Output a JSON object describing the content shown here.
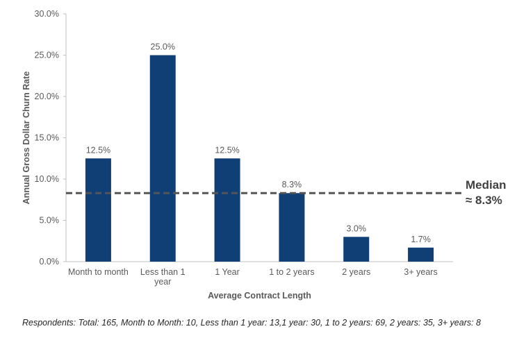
{
  "chart_data": {
    "type": "bar",
    "categories": [
      "Month to month",
      "Less than 1 year",
      "1 Year",
      "1 to 2 years",
      "2 years",
      "3+ years"
    ],
    "category_labels": [
      [
        "Month to month"
      ],
      [
        "Less than 1",
        "year"
      ],
      [
        "1 Year"
      ],
      [
        "1 to 2 years"
      ],
      [
        "2 years"
      ],
      [
        "3+ years"
      ]
    ],
    "values": [
      12.5,
      25.0,
      12.5,
      8.3,
      3.0,
      1.7
    ],
    "data_labels": [
      "12.5%",
      "25.0%",
      "12.5%",
      "8.3%",
      "3.0%",
      "1.7%"
    ],
    "xlabel": "Average Contract Length",
    "ylabel": "Annual Gross Dollar Churn Rate",
    "ylim": [
      0,
      30
    ],
    "yticks": [
      "0.0%",
      "5.0%",
      "10.0%",
      "15.0%",
      "20.0%",
      "25.0%",
      "30.0%"
    ],
    "grid": false,
    "bar_color": "#0f3f75",
    "reference_line": {
      "value": 8.3,
      "style": "dashed",
      "color": "#555555",
      "label_line1": "Median",
      "label_line2": "≈ 8.3%"
    }
  },
  "footnote": "Respondents: Total: 165, Month to Month: 10, Less than 1 year: 13,1 year: 30, 1 to 2 years: 69, 2 years: 35, 3+ years: 8"
}
